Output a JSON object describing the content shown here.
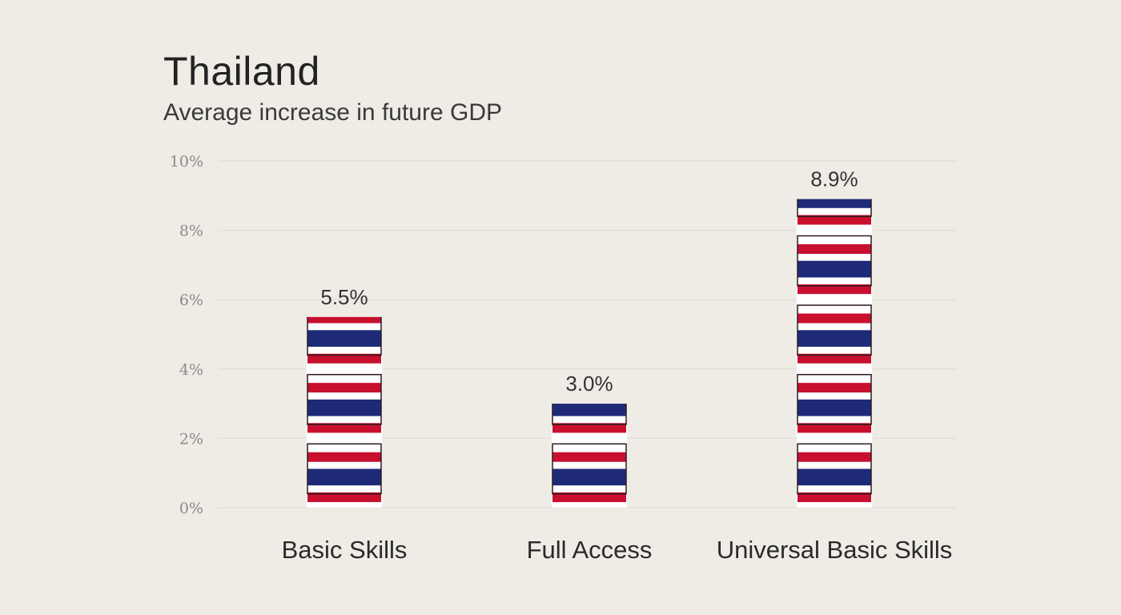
{
  "header": {
    "title": "Thailand",
    "subtitle": "Average increase in future GDP"
  },
  "colors": {
    "background": "#efece6",
    "flag_red": "#c8102e",
    "flag_white": "#ffffff",
    "flag_blue": "#1e2a78",
    "gridline": "#e3dfd7"
  },
  "icons": {
    "bar_fill": "thailand-flag-pattern"
  },
  "chart_data": {
    "type": "bar",
    "title": "Thailand",
    "subtitle": "Average increase in future GDP",
    "categories": [
      "Basic Skills",
      "Full Access",
      "Universal Basic Skills"
    ],
    "values": [
      5.5,
      3.0,
      8.9
    ],
    "value_labels": [
      "5.5%",
      "3.0%",
      "8.9%"
    ],
    "ylim": [
      0,
      10
    ],
    "yticks": [
      0,
      2,
      4,
      6,
      8,
      10
    ],
    "ytick_labels": [
      "0%",
      "2%",
      "4%",
      "6%",
      "8%",
      "10%"
    ],
    "xlabel": "",
    "ylabel": "",
    "grid": true,
    "legend": "none"
  }
}
